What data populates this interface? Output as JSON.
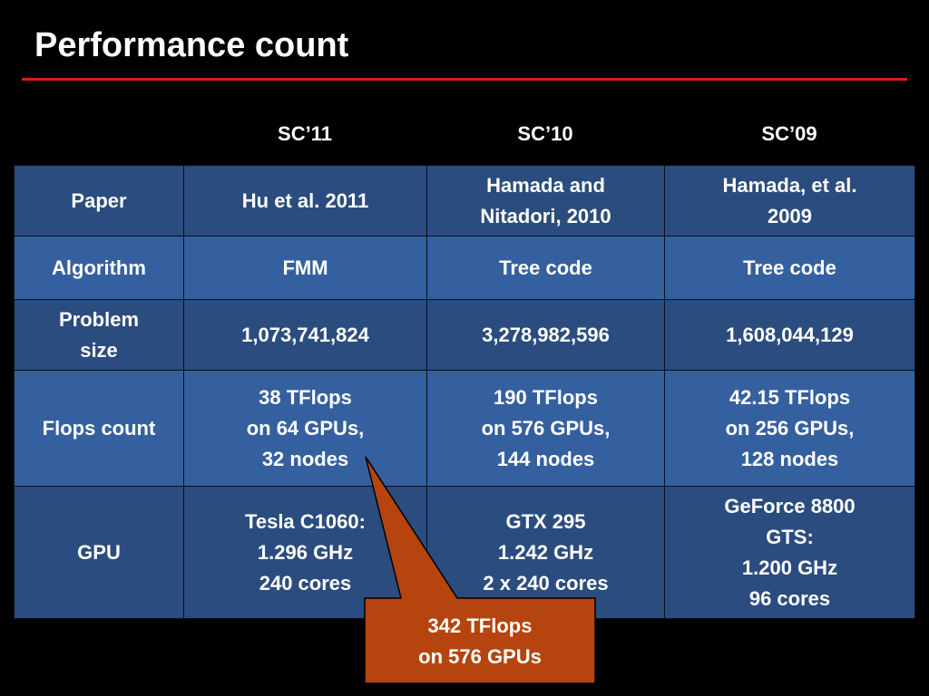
{
  "title": "Performance count",
  "colors": {
    "background": "#000000",
    "rule": "#d81b1b",
    "row_dark": "#2b4c7e",
    "row_light": "#3560a0",
    "callout_fill": "#b5440f"
  },
  "columns": [
    "SC’11",
    "SC’10",
    "SC’09"
  ],
  "rows": [
    {
      "label": [
        "Paper"
      ],
      "cells": [
        [
          "Hu et al. 2011"
        ],
        [
          "Hamada and",
          "Nitadori, 2010"
        ],
        [
          "Hamada, et al.",
          "2009"
        ]
      ]
    },
    {
      "label": [
        "Algorithm"
      ],
      "cells": [
        [
          "FMM"
        ],
        [
          "Tree code"
        ],
        [
          "Tree code"
        ]
      ]
    },
    {
      "label": [
        "Problem",
        "size"
      ],
      "cells": [
        [
          "1,073,741,824"
        ],
        [
          "3,278,982,596"
        ],
        [
          "1,608,044,129"
        ]
      ]
    },
    {
      "label": [
        "Flops count"
      ],
      "cells": [
        [
          "38 TFlops",
          "on 64 GPUs,",
          "32 nodes"
        ],
        [
          "190 TFlops",
          "on 576 GPUs,",
          "144 nodes"
        ],
        [
          "42.15 TFlops",
          "on 256 GPUs,",
          "128 nodes"
        ]
      ]
    },
    {
      "label": [
        "GPU"
      ],
      "cells": [
        [
          "Tesla C1060:",
          "1.296 GHz",
          "240 cores"
        ],
        [
          "GTX 295",
          "1.242 GHz",
          "2 x 240 cores"
        ],
        [
          "GeForce 8800",
          "GTS:",
          "1.200 GHz",
          "96 cores"
        ]
      ]
    }
  ],
  "callout": {
    "lines": [
      "342 TFlops",
      "on 576 GPUs"
    ]
  }
}
